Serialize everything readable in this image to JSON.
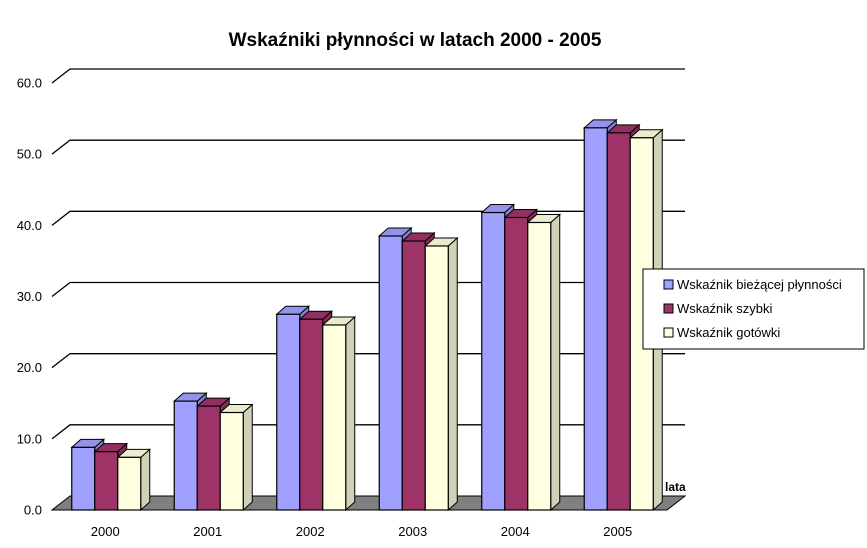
{
  "chart_data": {
    "type": "bar",
    "title": "Wskaźniki płynności w latach 2000 - 2005",
    "xlabel": "lata",
    "ylabel": "",
    "ylim": [
      0,
      60
    ],
    "yticks": [
      "0.0",
      "10.0",
      "20.0",
      "30.0",
      "40.0",
      "50.0",
      "60.0"
    ],
    "categories": [
      "2000",
      "2001",
      "2002",
      "2003",
      "2004",
      "2005"
    ],
    "grid": true,
    "legend_position": "right",
    "series": [
      {
        "name": "Wskaźnik bieżącej płynności",
        "color": "#a0a0ff",
        "values": [
          8.8,
          15.3,
          27.5,
          38.5,
          41.8,
          53.7
        ]
      },
      {
        "name": "Wskaźnik szybki",
        "color": "#9e3368",
        "values": [
          8.2,
          14.6,
          26.8,
          37.8,
          41.1,
          53.0
        ]
      },
      {
        "name": "Wskaźnik gotówki",
        "color": "#ffffe0",
        "values": [
          7.4,
          13.7,
          26.0,
          37.1,
          40.4,
          52.3
        ]
      }
    ]
  }
}
